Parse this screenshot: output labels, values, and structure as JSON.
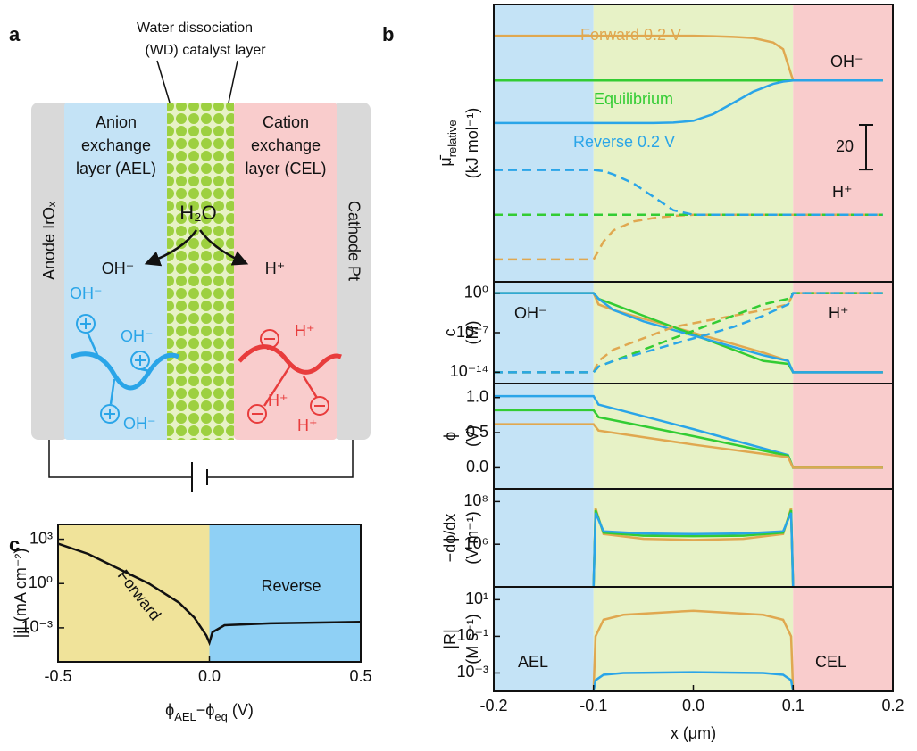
{
  "panel_labels": [
    "a",
    "b",
    "c"
  ],
  "diagram": {
    "wd_label": [
      "Water dissociation",
      "(WD) catalyst layer"
    ],
    "ael": [
      "Anion",
      "exchange",
      "layer (AEL)"
    ],
    "cel": [
      "Cation",
      "exchange",
      "layer (CEL)"
    ],
    "anode": "Anode IrOₓ",
    "cathode": "Cathode Pt",
    "water": "H₂O",
    "products": [
      "OH⁻",
      "H⁺"
    ],
    "oh_ions": [
      "OH⁻",
      "OH⁻",
      "OH⁻"
    ],
    "h_ions": [
      "H⁺",
      "H⁺",
      "H⁺"
    ]
  },
  "chart_data": [
    {
      "type": "line",
      "ylabel": [
        "μ̄",
        "relative"
      ],
      "yunit": "(kJ mol⁻¹)",
      "xlim": [
        -0.2,
        0.2
      ],
      "ylim": [
        -30,
        94
      ],
      "scale_bar": 20,
      "bands": [
        {
          "x0": -0.2,
          "x1": -0.1,
          "color": "#c4e3f6"
        },
        {
          "x0": -0.1,
          "x1": 0.1,
          "color": "#e7f2c6"
        },
        {
          "x0": 0.1,
          "x1": 0.2,
          "color": "#f9cccc"
        }
      ],
      "annotations": [
        "OH⁻",
        "H⁺"
      ],
      "x": [
        -0.2,
        -0.1,
        -0.09,
        -0.08,
        -0.06,
        -0.04,
        -0.02,
        0,
        0.02,
        0.04,
        0.06,
        0.08,
        0.09,
        0.1,
        0.19
      ],
      "series": [
        {
          "name": "Forward 0.2 V",
          "color": "#e0a850",
          "values": [
            80,
            80,
            80,
            80,
            80,
            80,
            80,
            80,
            79.8,
            79.5,
            79,
            77,
            74,
            60,
            60
          ]
        },
        {
          "name": "Equilibrium",
          "color": "#33cc33",
          "values": [
            60,
            60,
            60,
            60,
            60,
            60,
            60,
            60,
            60,
            60,
            60,
            60,
            60,
            60,
            60
          ]
        },
        {
          "name": "Reverse 0.2 V",
          "color": "#2aa5e8",
          "values": [
            41,
            41,
            41,
            41,
            41,
            41,
            41.2,
            42,
            45,
            50,
            55,
            58.5,
            59.5,
            60,
            60
          ]
        },
        {
          "color": "#e0a850",
          "dashed": true,
          "values": [
            -20,
            -20,
            -12,
            -7,
            -3,
            -1.5,
            -0.5,
            0,
            0,
            0,
            0,
            0,
            0,
            0,
            0
          ]
        },
        {
          "color": "#33cc33",
          "dashed": true,
          "values": [
            0,
            0,
            0,
            0,
            0,
            0,
            0,
            0,
            0,
            0,
            0,
            0,
            0,
            0,
            0
          ]
        },
        {
          "color": "#2aa5e8",
          "dashed": true,
          "values": [
            20,
            20,
            19.5,
            18,
            14,
            8,
            2,
            0,
            0,
            0,
            0,
            0,
            0,
            0,
            0
          ]
        }
      ]
    },
    {
      "type": "line",
      "ylabel": "c",
      "yunit": "(M)",
      "log_y": true,
      "xlim": [
        -0.2,
        0.2
      ],
      "ylim": [
        1e-16,
        100
      ],
      "yticks": [
        {
          "value": 1,
          "label": "10⁰"
        },
        {
          "value": 1e-07,
          "label": "10⁻⁷"
        },
        {
          "value": 1e-14,
          "label": "10⁻¹⁴"
        }
      ],
      "bands": [
        {
          "x0": -0.2,
          "x1": -0.1,
          "color": "#c4e3f6"
        },
        {
          "x0": -0.1,
          "x1": 0.1,
          "color": "#e7f2c6"
        },
        {
          "x0": 0.1,
          "x1": 0.2,
          "color": "#f9cccc"
        }
      ],
      "annotations": [
        "OH⁻",
        "H⁺"
      ],
      "x": [
        -0.2,
        -0.1,
        -0.095,
        -0.08,
        -0.05,
        -0.02,
        0.01,
        0.04,
        0.07,
        0.095,
        0.1,
        0.19
      ],
      "series": [
        {
          "color": "#e0a850",
          "values": [
            1,
            1,
            0.01,
            0.001,
            3e-05,
            1e-06,
            3e-08,
            1e-09,
            3e-11,
            1e-12,
            1e-14,
            1e-14
          ]
        },
        {
          "color": "#33cc33",
          "values": [
            1,
            1,
            0.1,
            0.01,
            0.0001,
            1e-06,
            1e-08,
            1e-10,
            1e-12,
            3e-13,
            1e-14,
            1e-14
          ]
        },
        {
          "color": "#2aa5e8",
          "values": [
            1,
            1,
            0.1,
            0.001,
            1e-05,
            3e-07,
            1e-08,
            3e-10,
            1e-11,
            1e-12,
            1e-14,
            1e-14
          ]
        },
        {
          "color": "#e0a850",
          "dashed": true,
          "values": [
            1e-14,
            1e-14,
            1e-12,
            1e-10,
            1e-08,
            1e-06,
            1e-05,
            0.0001,
            0.001,
            0.01,
            1,
            1
          ]
        },
        {
          "color": "#33cc33",
          "dashed": true,
          "values": [
            1e-14,
            1e-14,
            1e-13,
            1e-12,
            1e-10,
            1e-08,
            1e-06,
            0.0001,
            0.01,
            0.1,
            1,
            1
          ]
        },
        {
          "color": "#2aa5e8",
          "dashed": true,
          "values": [
            1e-14,
            1e-14,
            1e-13,
            1e-12,
            3e-11,
            1e-09,
            3e-08,
            1e-06,
            0.0001,
            0.01,
            1,
            1
          ]
        }
      ]
    },
    {
      "type": "line",
      "ylabel": "ϕ",
      "yunit": "(V)",
      "xlim": [
        -0.2,
        0.2
      ],
      "ylim": [
        -0.3,
        1.2
      ],
      "yticks": [
        {
          "value": 1,
          "label": "1.0"
        },
        0.5,
        {
          "value": 0,
          "label": "0.0"
        }
      ],
      "bands": [
        {
          "x0": -0.2,
          "x1": -0.1,
          "color": "#c4e3f6"
        },
        {
          "x0": -0.1,
          "x1": 0.1,
          "color": "#e7f2c6"
        },
        {
          "x0": 0.1,
          "x1": 0.2,
          "color": "#f9cccc"
        }
      ],
      "x": [
        -0.2,
        -0.1,
        -0.095,
        0,
        0.095,
        0.1,
        0.19
      ],
      "series": [
        {
          "color": "#2aa5e8",
          "values": [
            1.02,
            1.02,
            0.9,
            0.55,
            0.18,
            0,
            0
          ]
        },
        {
          "color": "#33cc33",
          "values": [
            0.82,
            0.82,
            0.72,
            0.45,
            0.17,
            0,
            0
          ]
        },
        {
          "color": "#e0a850",
          "values": [
            0.62,
            0.62,
            0.53,
            0.33,
            0.15,
            0,
            0
          ]
        }
      ]
    },
    {
      "type": "line",
      "ylabel": "−dϕ/dx",
      "yunit": "(V m⁻¹)",
      "log_y": true,
      "xlim": [
        -0.2,
        0.2
      ],
      "ylim": [
        10000,
        400000000
      ],
      "yticks": [
        {
          "value": 100000000,
          "label": "10⁸"
        },
        {
          "value": 1000000,
          "label": "10⁶"
        }
      ],
      "bands": [
        {
          "x0": -0.2,
          "x1": -0.1,
          "color": "#c4e3f6"
        },
        {
          "x0": -0.1,
          "x1": 0.1,
          "color": "#e7f2c6"
        },
        {
          "x0": 0.1,
          "x1": 0.2,
          "color": "#f9cccc"
        }
      ],
      "x": [
        -0.1,
        -0.098,
        -0.09,
        -0.05,
        0,
        0.05,
        0.09,
        0.098,
        0.1
      ],
      "series": [
        {
          "color": "#e0a850",
          "values": [
            10000,
            50000000,
            3000000,
            1800000,
            1600000,
            1800000,
            3000000,
            50000000,
            10000
          ]
        },
        {
          "color": "#33cc33",
          "values": [
            10000,
            40000000,
            3500000,
            2500000,
            2400000,
            2500000,
            3500000,
            40000000,
            10000
          ]
        },
        {
          "color": "#2aa5e8",
          "values": [
            10000,
            30000000,
            4000000,
            3200000,
            3000000,
            3200000,
            4000000,
            30000000,
            10000
          ]
        }
      ]
    },
    {
      "type": "line",
      "ylabel": "|R|",
      "yunit": "(M s⁻¹)",
      "log_y": true,
      "xlim": [
        -0.2,
        0.2
      ],
      "ylim": [
        0.0001,
        50
      ],
      "yticks": [
        {
          "value": 10,
          "label": "10¹"
        },
        {
          "value": 0.1,
          "label": "10⁻¹"
        },
        {
          "value": 0.001,
          "label": "10⁻³"
        }
      ],
      "xticks": [
        -0.2,
        -0.1,
        {
          "value": 0,
          "label": "0.0"
        },
        0.1,
        0.2
      ],
      "xlabel": "x (μm)",
      "bands": [
        {
          "x0": -0.2,
          "x1": -0.1,
          "color": "#c4e3f6"
        },
        {
          "x0": -0.1,
          "x1": 0.1,
          "color": "#e7f2c6"
        },
        {
          "x0": 0.1,
          "x1": 0.2,
          "color": "#f9cccc"
        }
      ],
      "annotations": [
        "AEL",
        "CEL"
      ],
      "x": [
        -0.1,
        -0.098,
        -0.09,
        -0.07,
        0,
        0.07,
        0.09,
        0.098,
        0.1
      ],
      "series": [
        {
          "color": "#e0a850",
          "values": [
            0.0001,
            0.1,
            0.8,
            1.5,
            2.5,
            1.5,
            0.8,
            0.1,
            0.0001
          ]
        },
        {
          "color": "#2aa5e8",
          "values": [
            0.0001,
            0.0004,
            0.0008,
            0.001,
            0.0011,
            0.001,
            0.0008,
            0.0004,
            0.0001
          ]
        }
      ]
    },
    {
      "type": "line",
      "ylabel": "|j| (mA cm⁻²)",
      "log_y": true,
      "xlim": [
        -0.5,
        0.5
      ],
      "ylim": [
        5e-06,
        10000
      ],
      "yticks": [
        {
          "value": 1000,
          "label": "10³"
        },
        {
          "value": 1,
          "label": "10⁰"
        },
        {
          "value": 0.001,
          "label": "10⁻³"
        }
      ],
      "xticks": [
        -0.5,
        {
          "value": 0,
          "label": "0.0"
        },
        0.5
      ],
      "xlabel": [
        "ϕ",
        "AEL",
        "−ϕ",
        "eq",
        " (V)"
      ],
      "bands": [
        {
          "x0": -0.5,
          "x1": 0,
          "color": "#f0e39a"
        },
        {
          "x0": 0,
          "x1": 0.5,
          "color": "#8fd0f5"
        }
      ],
      "annotations": [
        "Forward",
        "Reverse"
      ],
      "x": [
        -0.5,
        -0.4,
        -0.3,
        -0.2,
        -0.1,
        -0.05,
        -0.01,
        0,
        0.01,
        0.05,
        0.2,
        0.5
      ],
      "series": [
        {
          "color": "#111111",
          "values": [
            500,
            100,
            10,
            1,
            0.05,
            0.005,
            0.0003,
            0.0001,
            0.0005,
            0.0015,
            0.002,
            0.0025
          ]
        }
      ]
    }
  ]
}
